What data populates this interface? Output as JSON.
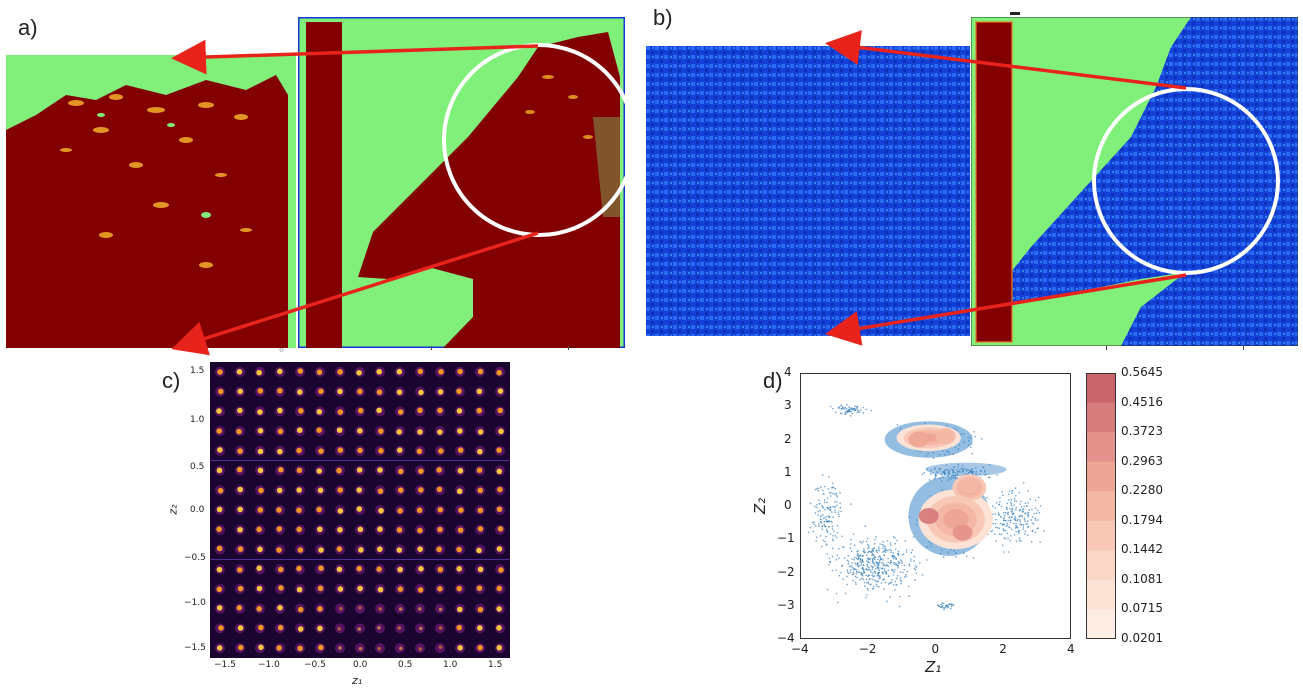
{
  "figure": {
    "panels": {
      "a": {
        "label": "a)"
      },
      "b": {
        "label": "b)"
      },
      "c": {
        "label": "c)",
        "xlabel": "z₁",
        "ylabel": "z₂",
        "x_ticks": [
          "−1.5",
          "−1.0",
          "−0.5",
          "0.0",
          "0.5",
          "1.0",
          "1.5"
        ],
        "y_ticks": [
          "1.5",
          "1.0",
          "0.5",
          "0.0",
          "−0.5",
          "−1.0",
          "−1.5"
        ]
      },
      "d": {
        "label": "d)",
        "xlabel": "Z₁",
        "ylabel": "Z₂"
      }
    },
    "colors": {
      "arrow": "#e8231c",
      "green": "#80f07a",
      "dark_red": "#820000",
      "blue": "#1238d8"
    }
  },
  "chart_data": {
    "type": "scatter",
    "title": "",
    "xlabel": "Z1",
    "ylabel": "Z2",
    "xlim": [
      -4,
      4
    ],
    "ylim": [
      -4,
      4
    ],
    "x_ticks": [
      "−4",
      "−2",
      "0",
      "2",
      "4"
    ],
    "y_ticks": [
      "4",
      "3",
      "2",
      "1",
      "0",
      "−1",
      "−2",
      "−3",
      "−4"
    ],
    "density_peaks": [
      {
        "x": -0.5,
        "y": 2.0,
        "level": 0.3
      },
      {
        "x": 0.3,
        "y": 2.1,
        "level": 0.23
      },
      {
        "x": -0.2,
        "y": -0.3,
        "level": 0.56
      },
      {
        "x": 0.8,
        "y": -0.8,
        "level": 0.45
      },
      {
        "x": 1.0,
        "y": 0.6,
        "level": 0.23
      }
    ],
    "colorbar": {
      "levels": [
        "0.5645",
        "0.4516",
        "0.3723",
        "0.2963",
        "0.2280",
        "0.1794",
        "0.1442",
        "0.1081",
        "0.0715",
        "0.0201"
      ],
      "colors": [
        "#c9636c",
        "#d77c7c",
        "#e4928b",
        "#ee a595",
        "#f4b7a5",
        "#f8c7b5",
        "#fbd6c6",
        "#fde3d6",
        "#feede5",
        "#fff6f2"
      ]
    }
  }
}
